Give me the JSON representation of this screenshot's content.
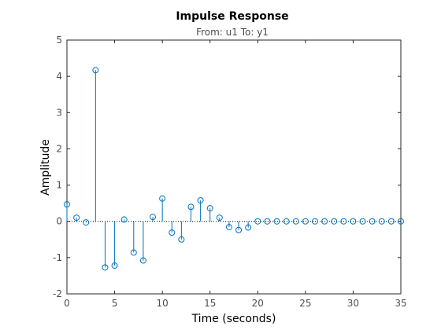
{
  "chart_data": {
    "type": "stem",
    "title": "Impulse Response",
    "subtitle": "From: u1  To: y1",
    "xlabel": "Time (seconds)",
    "ylabel": "Amplitude",
    "xlim": [
      0,
      35
    ],
    "ylim": [
      -2,
      5
    ],
    "xticks": [
      0,
      5,
      10,
      15,
      20,
      25,
      30,
      35
    ],
    "yticks": [
      -2,
      -1,
      0,
      1,
      2,
      3,
      4,
      5
    ],
    "grid": false,
    "x": [
      0,
      1,
      2,
      3,
      4,
      5,
      6,
      7,
      8,
      9,
      10,
      11,
      12,
      13,
      14,
      15,
      16,
      17,
      18,
      19,
      20,
      21,
      22,
      23,
      24,
      25,
      26,
      27,
      28,
      29,
      30,
      31,
      32,
      33,
      34,
      35
    ],
    "y": [
      0.47,
      0.1,
      -0.03,
      4.17,
      -1.27,
      -1.22,
      0.05,
      -0.86,
      -1.08,
      0.12,
      0.63,
      -0.31,
      -0.5,
      0.4,
      0.58,
      0.36,
      0.1,
      -0.16,
      -0.24,
      -0.17,
      0.0,
      0.0,
      0.0,
      0.0,
      0.0,
      0.0,
      0.0,
      0.0,
      0.0,
      0.0,
      0.0,
      0.0,
      0.0,
      0.0,
      0.0,
      0.0
    ],
    "colors": {
      "stem": "#0072bd",
      "axes": "#262626",
      "zero_line": "#000000"
    }
  }
}
